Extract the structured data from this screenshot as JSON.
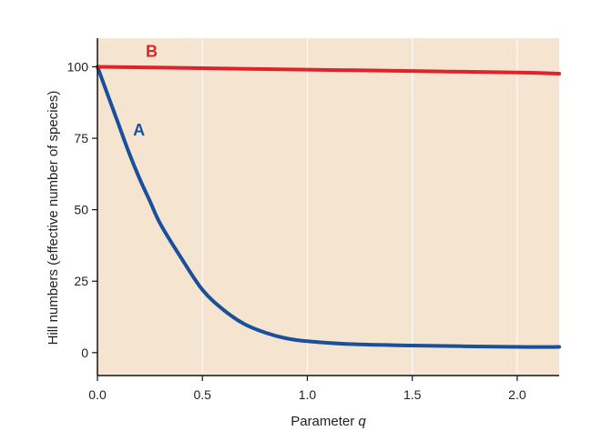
{
  "chart_data": {
    "type": "line",
    "title": "",
    "xlabel": "Parameter ",
    "xlabel_var": "q",
    "ylabel": "Hill numbers (effective number of species)",
    "xlim": [
      0,
      2.2
    ],
    "ylim": [
      -8,
      110
    ],
    "x_ticks": [
      0.0,
      0.5,
      1.0,
      1.5,
      2.0
    ],
    "x_tick_labels": [
      "0.0",
      "0.5",
      "1.0",
      "1.5",
      "2.0"
    ],
    "y_ticks": [
      0,
      25,
      50,
      75,
      100
    ],
    "y_tick_labels": [
      "0",
      "25",
      "50",
      "75",
      "100"
    ],
    "grid": "vertical",
    "background_color": "#f5e4d0",
    "series": [
      {
        "name": "A",
        "color": "#1a4f9c",
        "x": [
          0.0,
          0.05,
          0.1,
          0.15,
          0.2,
          0.25,
          0.3,
          0.4,
          0.5,
          0.6,
          0.7,
          0.8,
          0.9,
          1.0,
          1.2,
          1.5,
          2.0,
          2.2
        ],
        "values": [
          100,
          90,
          80,
          70,
          61,
          53,
          45,
          33,
          22,
          15,
          10,
          7,
          5,
          4,
          3,
          2.5,
          2,
          2
        ]
      },
      {
        "name": "B",
        "color": "#e0222a",
        "x": [
          0.0,
          0.5,
          1.0,
          1.5,
          2.0,
          2.2
        ],
        "values": [
          100,
          99.5,
          99,
          98.5,
          98,
          97.6
        ]
      }
    ]
  }
}
